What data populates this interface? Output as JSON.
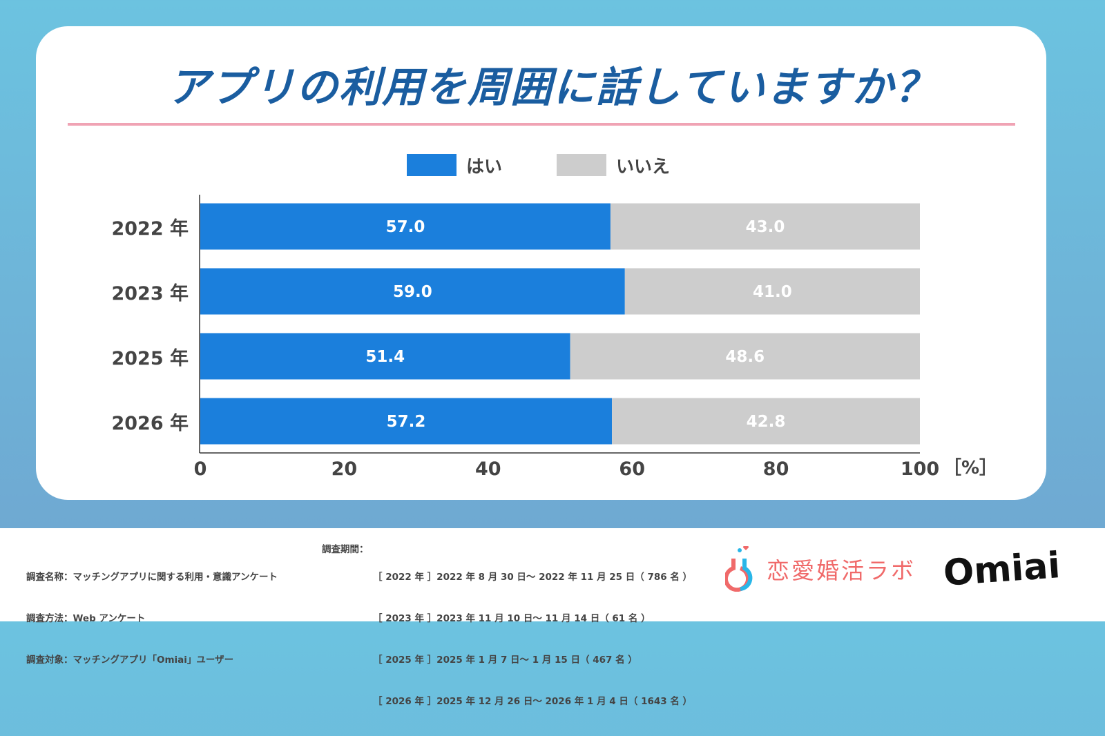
{
  "title": "アプリの利用を周囲に話していますか？",
  "colors": {
    "yes": "#1b7fdc",
    "no": "#cdcdcd",
    "title": "#1a5da0",
    "rule": "#f0a3b4"
  },
  "chart_data": {
    "type": "bar",
    "orientation": "horizontal",
    "stacked": true,
    "categories": [
      "2022 年",
      "2023 年",
      "2025 年",
      "2026 年"
    ],
    "series": [
      {
        "name": "はい",
        "values": [
          57.0,
          59.0,
          51.4,
          57.2
        ]
      },
      {
        "name": "いいえ",
        "values": [
          43.0,
          41.0,
          48.6,
          42.8
        ]
      }
    ],
    "xlim": [
      0,
      100
    ],
    "xticks": [
      "0",
      "20",
      "40",
      "60",
      "80",
      "100"
    ],
    "unit": "［%］",
    "legend": "top-center",
    "grid": false
  },
  "footer": {
    "left": [
      "調査名称：マッチングアプリに関する利用・意識アンケート",
      "調査方法：Web アンケート",
      "調査対象：マッチングアプリ「Omiai」ユーザー"
    ],
    "period_label": "調査期間：",
    "period": [
      "［ 2022 年 ］2022 年 8 月 30 日～ 2022 年 11 月 25 日（ 786 名 ）",
      "［ 2023 年 ］2023 年 11 月 10 日～ 11 月 14 日（ 61 名 ）",
      "［ 2025 年 ］2025 年 1 月 7 日～ 1 月 15 日（ 467 名 ）",
      "［ 2026 年 ］2025 年 12 月 26 日～ 2026 年 1 月 4 日（ 1643 名 ）"
    ],
    "logo1": "恋愛婚活ラボ",
    "logo2": "Omiai"
  }
}
